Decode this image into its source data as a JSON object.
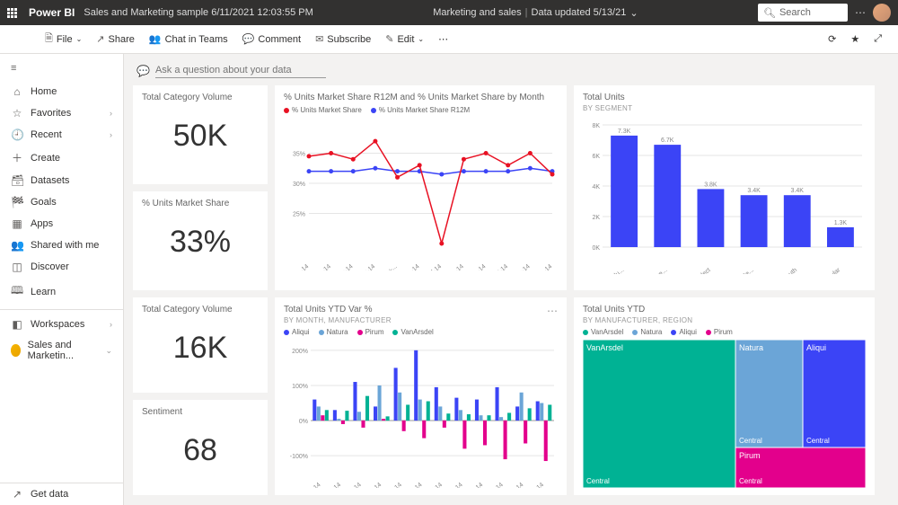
{
  "header": {
    "brand": "Power BI",
    "title": "Sales and Marketing sample 6/11/2021 12:03:55 PM",
    "center": "Marketing and sales",
    "updated": "Data updated 5/13/21",
    "search_placeholder": "Search"
  },
  "toolbar": {
    "file": "File",
    "share": "Share",
    "teams": "Chat in Teams",
    "comment": "Comment",
    "subscribe": "Subscribe",
    "edit": "Edit"
  },
  "sidebar": {
    "home": "Home",
    "favorites": "Favorites",
    "recent": "Recent",
    "create": "Create",
    "datasets": "Datasets",
    "goals": "Goals",
    "apps": "Apps",
    "shared": "Shared with me",
    "discover": "Discover",
    "learn": "Learn",
    "workspaces": "Workspaces",
    "current_ws": "Sales and Marketin...",
    "getdata": "Get data"
  },
  "qa": {
    "placeholder": "Ask a question about your data"
  },
  "colors": {
    "red": "#e81123",
    "blue": "#3b44f6",
    "teal": "#00b294",
    "ltblue": "#6ba5d7",
    "purple": "#8764b8",
    "pink": "#e3008c",
    "grid": "#e5e5e5"
  },
  "kpi": {
    "total_cat_vol": {
      "title": "Total Category Volume",
      "value": "50K"
    },
    "market_share": {
      "title": "% Units Market Share",
      "value": "33%"
    },
    "total_cat_vol2": {
      "title": "Total Category Volume",
      "value": "16K"
    },
    "sentiment": {
      "title": "Sentiment",
      "value": "68"
    }
  },
  "line_chart": {
    "title": "% Units Market Share R12M and % Units Market Share by Month",
    "series": [
      {
        "name": "% Units Market Share",
        "color": "#e81123"
      },
      {
        "name": "% Units Market Share R12M",
        "color": "#3b44f6"
      }
    ],
    "months": [
      "Jan-14",
      "Feb-14",
      "Mar-14",
      "Apr-14",
      "May-...",
      "Jun-14",
      "Jul-14",
      "Aug-14",
      "Sep-14",
      "Oct-14",
      "Nov-14",
      "Dec-14"
    ],
    "yticks": [
      "25%",
      "30%",
      "35%"
    ],
    "ylim": [
      20,
      40
    ],
    "red_values": [
      34.5,
      35,
      34,
      37,
      31,
      33,
      20,
      34,
      35,
      33,
      35,
      31.5
    ],
    "blue_values": [
      32,
      32,
      32,
      32.5,
      32,
      32,
      31.5,
      32,
      32,
      32,
      32.5,
      32
    ]
  },
  "bar_chart": {
    "title": "Total Units",
    "sub": "BY SEGMENT",
    "yticks": [
      "0K",
      "2K",
      "4K",
      "6K",
      "8K"
    ],
    "ymax": 8,
    "color": "#3b44f6",
    "bars": [
      {
        "label": "Produ...",
        "value": 7.3,
        "text": "7.3K"
      },
      {
        "label": "Extre...",
        "value": 6.7,
        "text": "6.7K"
      },
      {
        "label": "Select",
        "value": 3.8,
        "text": "3.8K"
      },
      {
        "label": "All Se...",
        "value": 3.4,
        "text": "3.4K"
      },
      {
        "label": "Youth",
        "value": 3.4,
        "text": "3.4K"
      },
      {
        "label": "Regular",
        "value": 1.3,
        "text": "1.3K"
      }
    ]
  },
  "var_chart": {
    "title": "Total Units YTD Var %",
    "sub": "BY MONTH, MANUFACTURER",
    "series": [
      {
        "name": "Aliqui",
        "color": "#3b44f6"
      },
      {
        "name": "Natura",
        "color": "#6ba5d7"
      },
      {
        "name": "Pirum",
        "color": "#e3008c"
      },
      {
        "name": "VanArsdel",
        "color": "#00b294"
      }
    ],
    "months": [
      "Jan-14",
      "Feb-14",
      "Mar-14",
      "Apr-14",
      "May-14",
      "Jun-14",
      "Jul-14",
      "Aug-14",
      "Sep-14",
      "Oct-14",
      "Nov-14",
      "Dec-14"
    ],
    "yticks": [
      "-100%",
      "0%",
      "100%",
      "200%"
    ],
    "ylim": [
      -120,
      220
    ],
    "data": {
      "Aliqui": [
        60,
        30,
        110,
        40,
        150,
        200,
        95,
        65,
        60,
        95,
        40,
        55
      ],
      "Natura": [
        40,
        5,
        25,
        100,
        80,
        60,
        40,
        30,
        15,
        10,
        80,
        50
      ],
      "Pirum": [
        15,
        -10,
        -20,
        5,
        -30,
        -50,
        -20,
        -80,
        -70,
        -110,
        -65,
        -115
      ],
      "VanArsdel": [
        30,
        28,
        70,
        12,
        45,
        55,
        20,
        18,
        15,
        22,
        35,
        45
      ]
    }
  },
  "treemap": {
    "title": "Total Units YTD",
    "sub": "BY MANUFACTURER, REGION",
    "series": [
      {
        "name": "VanArsdel",
        "color": "#00b294"
      },
      {
        "name": "Natura",
        "color": "#6ba5d7"
      },
      {
        "name": "Aliqui",
        "color": "#3b44f6"
      },
      {
        "name": "Pirum",
        "color": "#e3008c"
      }
    ],
    "region_label": "Central"
  }
}
